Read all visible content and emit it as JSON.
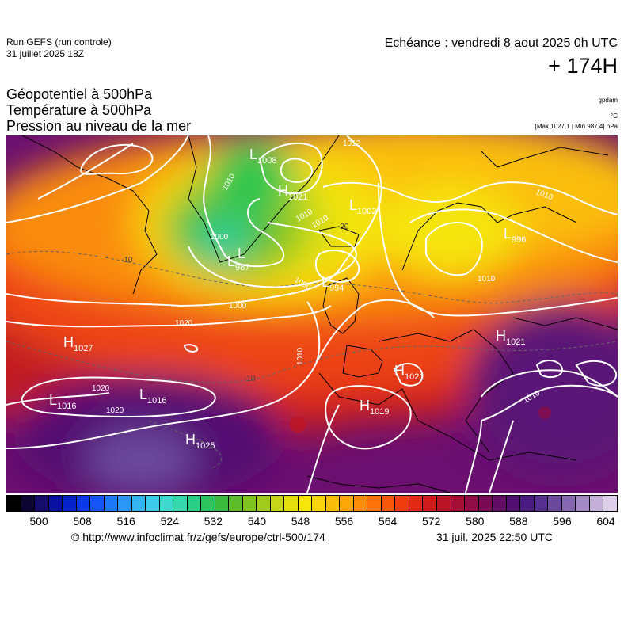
{
  "header": {
    "run_title": "Run GEFS (run controle)",
    "run_date": "31 juillet 2025 18Z",
    "echeance": "Echéance : vendredi 8 aout 2025 0h UTC",
    "lead_time": "+ 174H"
  },
  "parameters": {
    "line1": "Géopotentiel à 500hPa",
    "line2": "Température à 500hPa",
    "line3": "Pression au niveau de la mer"
  },
  "units": {
    "geopotential": "gpdam",
    "temperature": "°C",
    "max_min": "[Max 1027.1 | Min 987.4] hPa"
  },
  "pressure_systems": [
    {
      "type": "L",
      "value": "1008"
    },
    {
      "type": "H",
      "value": "1021"
    },
    {
      "type": "L",
      "value": "1002"
    },
    {
      "type": "L",
      "value": "996"
    },
    {
      "type": "L",
      "value": "987"
    },
    {
      "type": "L",
      "value": "994"
    },
    {
      "type": "H",
      "value": "1027"
    },
    {
      "type": "H",
      "value": "1021"
    },
    {
      "type": "H",
      "value": "1021"
    },
    {
      "type": "L",
      "value": "1016"
    },
    {
      "type": "L",
      "value": "1016"
    },
    {
      "type": "H",
      "value": "1019"
    },
    {
      "type": "H",
      "value": "1025"
    },
    {
      "type": "L",
      "value": ""
    }
  ],
  "isobar_labels": [
    "1012",
    "1010",
    "1010",
    "1000",
    "1010",
    "1000",
    "1020",
    "1020",
    "1020",
    "1010",
    "1000",
    "1010",
    "1010",
    "1010"
  ],
  "temperature_labels": [
    "-20",
    "-10",
    "-10"
  ],
  "colorbar": {
    "tick_labels": [
      "500",
      "508",
      "516",
      "524",
      "532",
      "540",
      "548",
      "556",
      "564",
      "572",
      "580",
      "588",
      "596",
      "604"
    ],
    "colors": [
      "#000000",
      "#0c0533",
      "#150c6b",
      "#0a10a0",
      "#0320c9",
      "#0a3ae8",
      "#1356f5",
      "#1e78f8",
      "#2a96f5",
      "#36b4f0",
      "#3ccbe8",
      "#3fd9cf",
      "#35d8ad",
      "#2bce86",
      "#2dc460",
      "#3cba3e",
      "#5cbc2b",
      "#80c422",
      "#a2cc1d",
      "#c6d618",
      "#e4e010",
      "#f7e60d",
      "#fad40c",
      "#fbbd0a",
      "#fca609",
      "#fc8d08",
      "#fb7309",
      "#f7560b",
      "#ef3d0f",
      "#e22914",
      "#d01c1c",
      "#bc1427",
      "#a60f35",
      "#8f0c44",
      "#780b54",
      "#630c63",
      "#520f72",
      "#4a1b80",
      "#55308f",
      "#6b4a9e",
      "#8568b0",
      "#a48ac4",
      "#c4b0d8",
      "#ded0ea"
    ]
  },
  "footer": {
    "credit": "© http://www.infoclimat.fr/z/gefs/europe/ctrl-500/174",
    "stamp": "31 juil. 2025 22:50 UTC"
  }
}
